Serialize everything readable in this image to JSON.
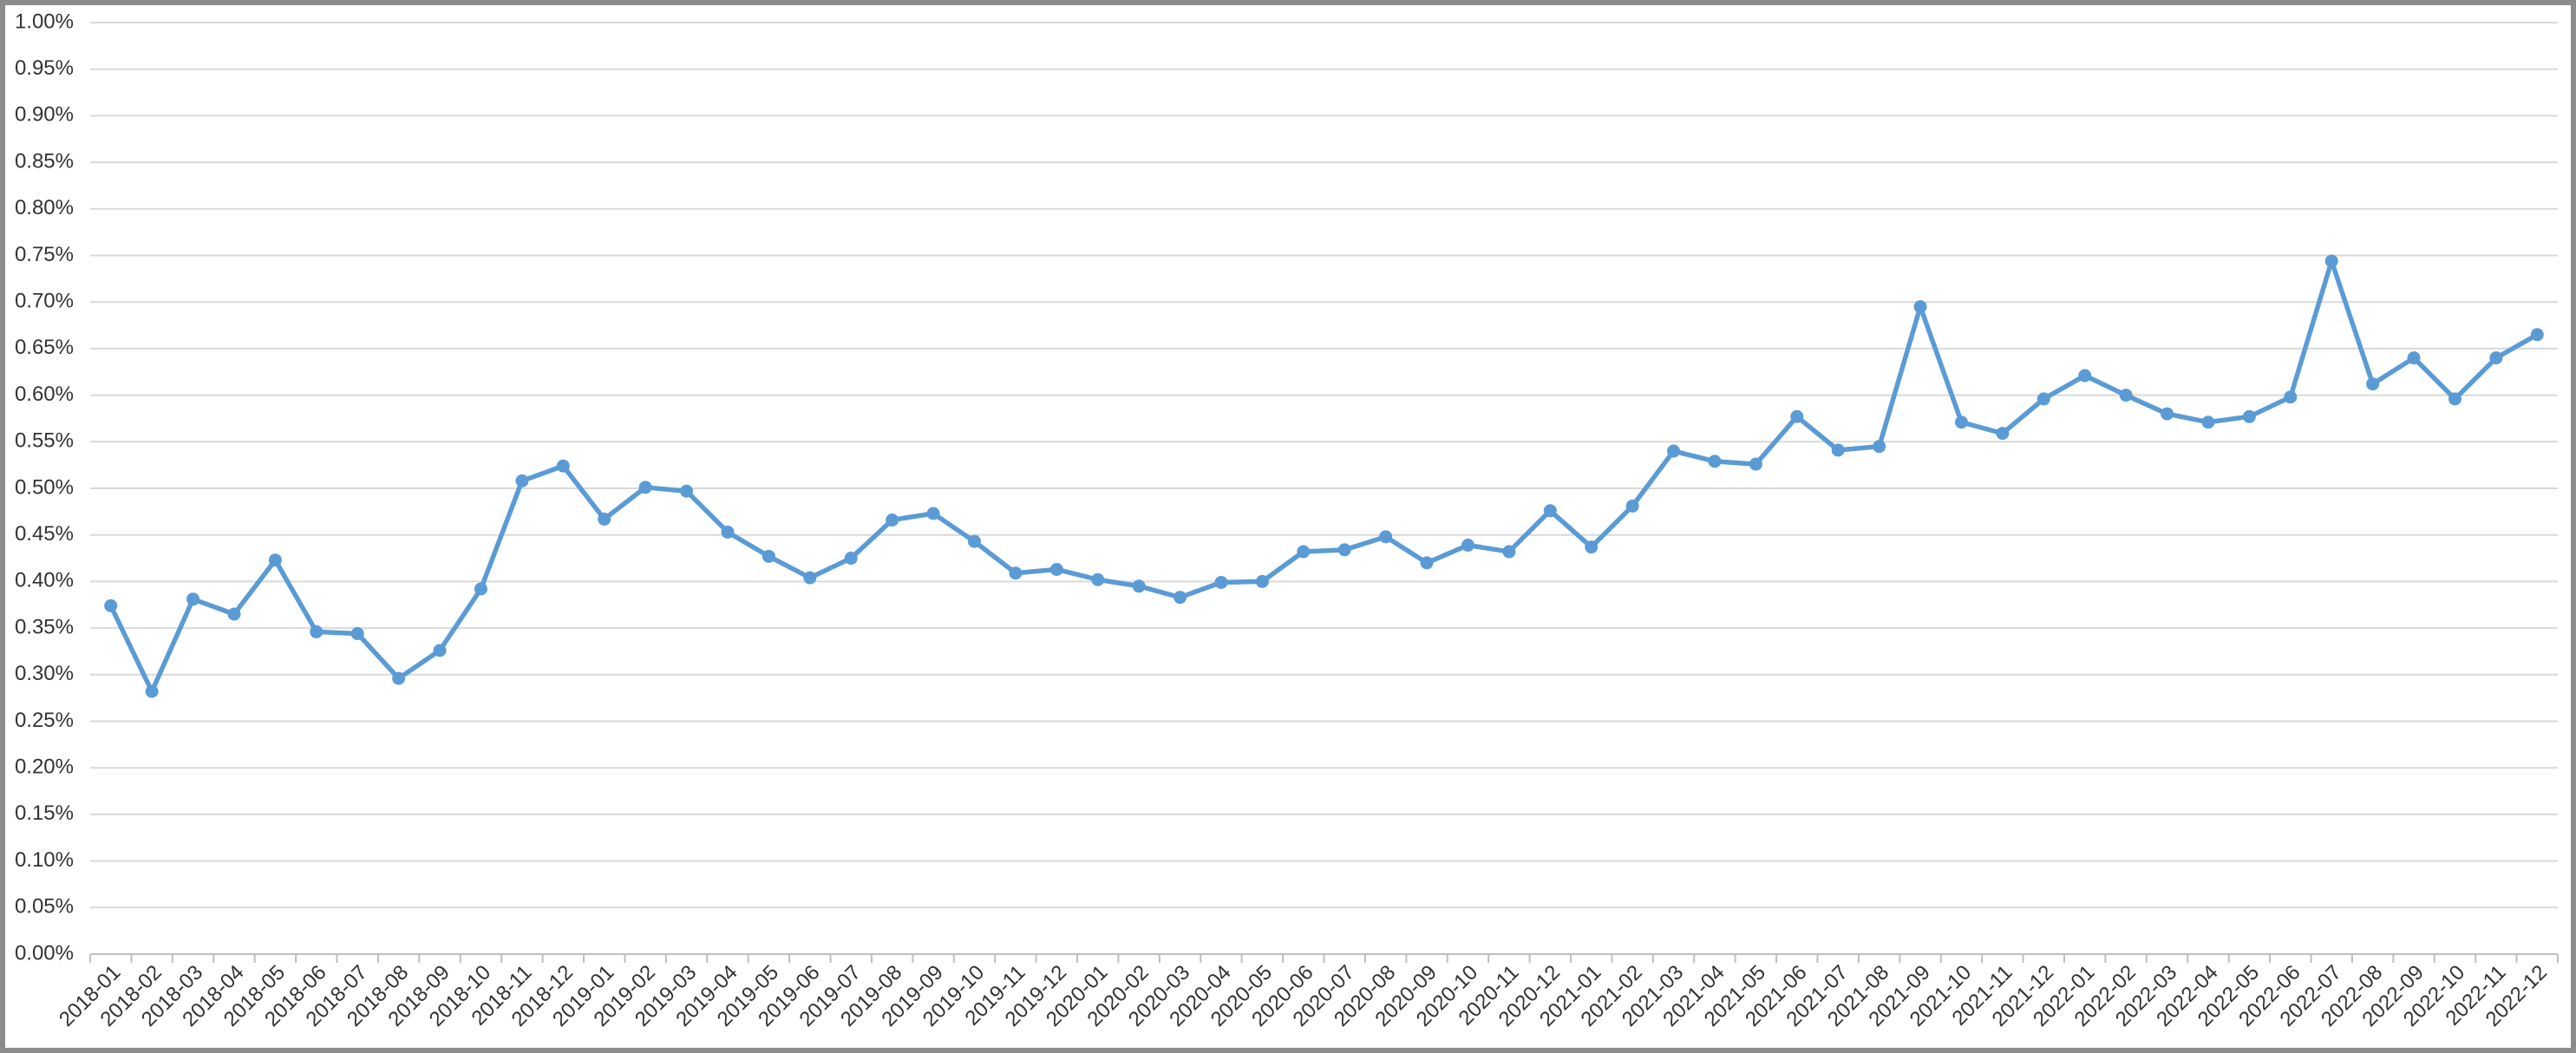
{
  "chart_data": {
    "type": "line",
    "categories": [
      "2018-01",
      "2018-02",
      "2018-03",
      "2018-04",
      "2018-05",
      "2018-06",
      "2018-07",
      "2018-08",
      "2018-09",
      "2018-10",
      "2018-11",
      "2018-12",
      "2019-01",
      "2019-02",
      "2019-03",
      "2019-04",
      "2019-05",
      "2019-06",
      "2019-07",
      "2019-08",
      "2019-09",
      "2019-10",
      "2019-11",
      "2019-12",
      "2020-01",
      "2020-02",
      "2020-03",
      "2020-04",
      "2020-05",
      "2020-06",
      "2020-07",
      "2020-08",
      "2020-09",
      "2020-10",
      "2020-11",
      "2020-12",
      "2021-01",
      "2021-02",
      "2021-03",
      "2021-04",
      "2021-05",
      "2021-06",
      "2021-07",
      "2021-08",
      "2021-09",
      "2021-10",
      "2021-11",
      "2021-12",
      "2022-01",
      "2022-02",
      "2022-03",
      "2022-04",
      "2022-05",
      "2022-06",
      "2022-07",
      "2022-08",
      "2022-09",
      "2022-10",
      "2022-11",
      "2022-12"
    ],
    "series": [
      {
        "color": "#5b9bd5",
        "values": [
          0.374,
          0.282,
          0.381,
          0.365,
          0.423,
          0.346,
          0.344,
          0.296,
          0.326,
          0.392,
          0.508,
          0.524,
          0.467,
          0.501,
          0.497,
          0.453,
          0.427,
          0.404,
          0.425,
          0.466,
          0.473,
          0.443,
          0.409,
          0.413,
          0.402,
          0.395,
          0.383,
          0.399,
          0.4,
          0.432,
          0.434,
          0.448,
          0.42,
          0.439,
          0.432,
          0.476,
          0.437,
          0.481,
          0.54,
          0.529,
          0.526,
          0.577,
          0.541,
          0.545,
          0.695,
          0.571,
          0.559,
          0.596,
          0.621,
          0.6,
          0.58,
          0.571,
          0.577,
          0.598,
          0.744,
          0.612,
          0.64,
          0.596,
          0.64,
          0.665
        ]
      }
    ],
    "ylim": [
      0,
      1
    ],
    "yticks": [
      {
        "value": 0,
        "label": "0.00%"
      },
      {
        "value": 0.05,
        "label": "0.05%"
      },
      {
        "value": 0.1,
        "label": "0.10%"
      },
      {
        "value": 0.15,
        "label": "0.15%"
      },
      {
        "value": 0.2,
        "label": "0.20%"
      },
      {
        "value": 0.25,
        "label": "0.25%"
      },
      {
        "value": 0.3,
        "label": "0.30%"
      },
      {
        "value": 0.35,
        "label": "0.35%"
      },
      {
        "value": 0.4,
        "label": "0.40%"
      },
      {
        "value": 0.45,
        "label": "0.45%"
      },
      {
        "value": 0.5,
        "label": "0.50%"
      },
      {
        "value": 0.55,
        "label": "0.55%"
      },
      {
        "value": 0.6,
        "label": "0.60%"
      },
      {
        "value": 0.65,
        "label": "0.65%"
      },
      {
        "value": 0.7,
        "label": "0.70%"
      },
      {
        "value": 0.75,
        "label": "0.75%"
      },
      {
        "value": 0.8,
        "label": "0.80%"
      },
      {
        "value": 0.85,
        "label": "0.85%"
      },
      {
        "value": 0.9,
        "label": "0.90%"
      },
      {
        "value": 0.95,
        "label": "0.95%"
      },
      {
        "value": 1,
        "label": "1.00%"
      }
    ],
    "grid": true
  }
}
